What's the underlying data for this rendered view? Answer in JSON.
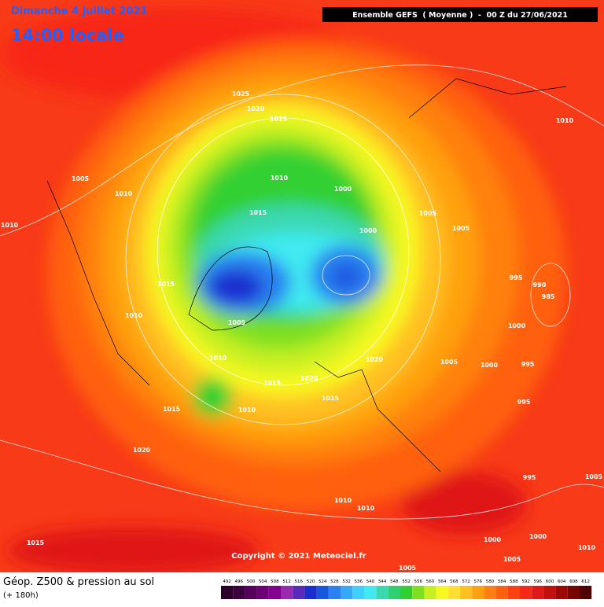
{
  "header": {
    "date": "Dimanche 4 juillet 2021",
    "time": "14:00 locale",
    "model": "Ensemble GEFS  ( Moyenne )  -  00 Z du 27/06/2021"
  },
  "map": {
    "copyright": "Copyright © 2021 Meteociel.fr",
    "isobar_labels": [
      1025,
      1020,
      1015,
      1010,
      1000,
      1015,
      1000,
      1005,
      1010,
      1010,
      1005,
      1005,
      1010,
      995,
      990,
      985,
      1015,
      1010,
      1005,
      1000,
      1010,
      1020,
      1005,
      1000,
      995,
      1015,
      1020,
      1015,
      995,
      1015,
      1010,
      1020,
      995,
      1005,
      1010,
      1010,
      1000,
      1000,
      1015,
      1005,
      1010,
      1005
    ]
  },
  "footer": {
    "title": "Géop. Z500 & pression au sol",
    "lead": "(+ 180h)"
  },
  "legend": {
    "items": [
      {
        "label": 492,
        "color": "#2b0028"
      },
      {
        "label": 496,
        "color": "#3c003f"
      },
      {
        "label": 500,
        "color": "#55005a"
      },
      {
        "label": 504,
        "color": "#6e0077"
      },
      {
        "label": 508,
        "color": "#86008f"
      },
      {
        "label": 512,
        "color": "#9a28b0"
      },
      {
        "label": 516,
        "color": "#5a2ab8"
      },
      {
        "label": 520,
        "color": "#1a2ed0"
      },
      {
        "label": 524,
        "color": "#1a55e0"
      },
      {
        "label": 528,
        "color": "#2c80f0"
      },
      {
        "label": 532,
        "color": "#36a8f8"
      },
      {
        "label": 536,
        "color": "#40d0ff"
      },
      {
        "label": 540,
        "color": "#40eaf0"
      },
      {
        "label": 544,
        "color": "#3ad8b0"
      },
      {
        "label": 548,
        "color": "#30d070"
      },
      {
        "label": 552,
        "color": "#30d030"
      },
      {
        "label": 556,
        "color": "#80e020"
      },
      {
        "label": 560,
        "color": "#c8f020"
      },
      {
        "label": 564,
        "color": "#f8f820"
      },
      {
        "label": 568,
        "color": "#ffe030"
      },
      {
        "label": 572,
        "color": "#ffc020"
      },
      {
        "label": 576,
        "color": "#ffa010"
      },
      {
        "label": 580,
        "color": "#ff8010"
      },
      {
        "label": 584,
        "color": "#ff6010"
      },
      {
        "label": 588,
        "color": "#ff4010"
      },
      {
        "label": 592,
        "color": "#f82818"
      },
      {
        "label": 596,
        "color": "#e01818"
      },
      {
        "label": 600,
        "color": "#c01010"
      },
      {
        "label": 604,
        "color": "#a00808"
      },
      {
        "label": 608,
        "color": "#780404"
      },
      {
        "label": 612,
        "color": "#500000"
      }
    ]
  }
}
